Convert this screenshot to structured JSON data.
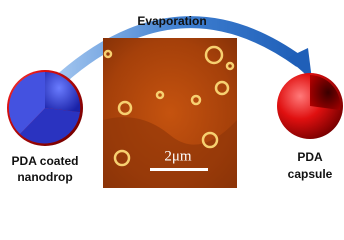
{
  "arrow_label": "Evaporation",
  "left": {
    "lines": [
      "PDA coated",
      "nanodrop"
    ]
  },
  "right": {
    "lines": [
      "PDA",
      "capsule"
    ]
  },
  "image": {
    "scale_bar": "2μm"
  }
}
